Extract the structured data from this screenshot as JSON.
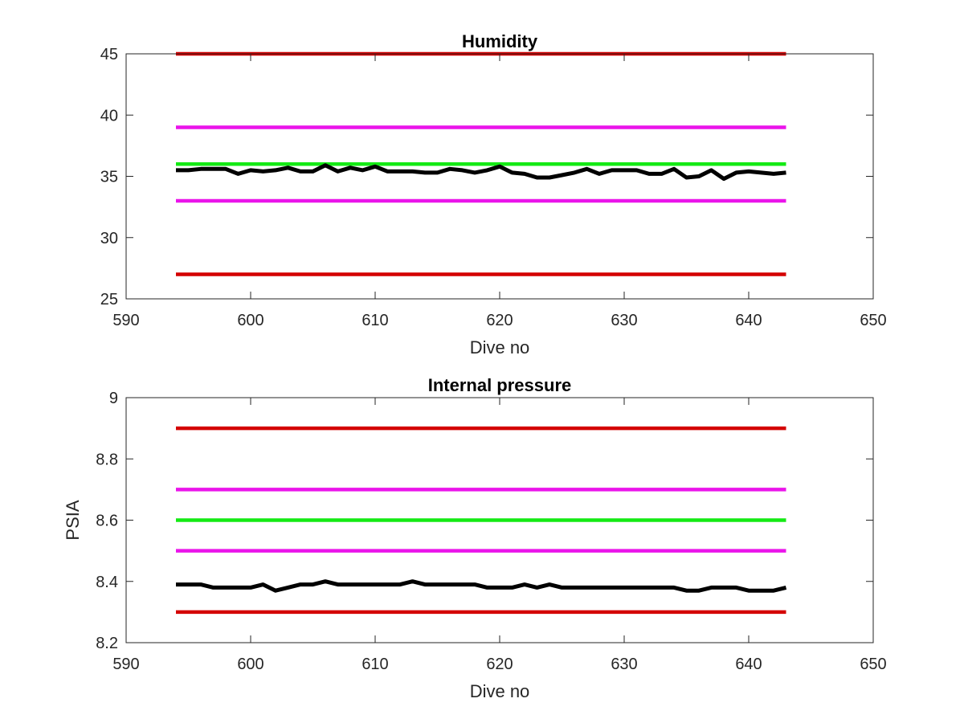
{
  "chart_data": [
    {
      "type": "line",
      "title": "Humidity",
      "xlabel": "Dive no",
      "ylabel": "",
      "xlim": [
        590,
        650
      ],
      "ylim": [
        25,
        45
      ],
      "xticks": [
        590,
        600,
        610,
        620,
        630,
        640,
        650
      ],
      "yticks": [
        25,
        30,
        35,
        40,
        45
      ],
      "grid": false,
      "series": [
        {
          "color": "#d40000",
          "x": [
            594,
            643
          ],
          "y": [
            45,
            45
          ]
        },
        {
          "color": "#ea14ea",
          "x": [
            594,
            643
          ],
          "y": [
            39,
            39
          ]
        },
        {
          "color": "#14ea14",
          "x": [
            594,
            643
          ],
          "y": [
            36,
            36
          ]
        },
        {
          "color": "#ea14ea",
          "x": [
            594,
            643
          ],
          "y": [
            33,
            33
          ]
        },
        {
          "color": "#d40000",
          "x": [
            594,
            643
          ],
          "y": [
            27,
            27
          ]
        },
        {
          "color": "#000000",
          "x": [
            594,
            595,
            596,
            597,
            598,
            599,
            600,
            601,
            602,
            603,
            604,
            605,
            606,
            607,
            608,
            609,
            610,
            611,
            612,
            613,
            614,
            615,
            616,
            617,
            618,
            619,
            620,
            621,
            622,
            623,
            624,
            625,
            626,
            627,
            628,
            629,
            630,
            631,
            632,
            633,
            634,
            635,
            636,
            637,
            638,
            639,
            640,
            641,
            642,
            643
          ],
          "y": [
            35.5,
            35.5,
            35.6,
            35.6,
            35.6,
            35.2,
            35.5,
            35.4,
            35.5,
            35.7,
            35.4,
            35.4,
            35.9,
            35.4,
            35.7,
            35.5,
            35.8,
            35.4,
            35.4,
            35.4,
            35.3,
            35.3,
            35.6,
            35.5,
            35.3,
            35.5,
            35.8,
            35.3,
            35.2,
            34.9,
            34.9,
            35.1,
            35.3,
            35.6,
            35.2,
            35.5,
            35.5,
            35.5,
            35.2,
            35.2,
            35.6,
            34.9,
            35.0,
            35.5,
            34.8,
            35.3,
            35.4,
            35.3,
            35.2,
            35.3
          ]
        }
      ]
    },
    {
      "type": "line",
      "title": "Internal pressure",
      "xlabel": "Dive no",
      "ylabel": "PSIA",
      "xlim": [
        590,
        650
      ],
      "ylim": [
        8.2,
        9.0
      ],
      "xticks": [
        590,
        600,
        610,
        620,
        630,
        640,
        650
      ],
      "yticks": [
        8.2,
        8.4,
        8.6,
        8.8,
        9.0
      ],
      "ytick_labels": [
        "8.2",
        "8.4",
        "8.6",
        "8.8",
        "9"
      ],
      "grid": false,
      "series": [
        {
          "color": "#d40000",
          "x": [
            594,
            643
          ],
          "y": [
            8.9,
            8.9
          ]
        },
        {
          "color": "#ea14ea",
          "x": [
            594,
            643
          ],
          "y": [
            8.7,
            8.7
          ]
        },
        {
          "color": "#14ea14",
          "x": [
            594,
            643
          ],
          "y": [
            8.6,
            8.6
          ]
        },
        {
          "color": "#ea14ea",
          "x": [
            594,
            643
          ],
          "y": [
            8.5,
            8.5
          ]
        },
        {
          "color": "#d40000",
          "x": [
            594,
            643
          ],
          "y": [
            8.3,
            8.3
          ]
        },
        {
          "color": "#000000",
          "x": [
            594,
            595,
            596,
            597,
            598,
            599,
            600,
            601,
            602,
            603,
            604,
            605,
            606,
            607,
            608,
            609,
            610,
            611,
            612,
            613,
            614,
            615,
            616,
            617,
            618,
            619,
            620,
            621,
            622,
            623,
            624,
            625,
            626,
            627,
            628,
            629,
            630,
            631,
            632,
            633,
            634,
            635,
            636,
            637,
            638,
            639,
            640,
            641,
            642,
            643
          ],
          "y": [
            8.39,
            8.39,
            8.39,
            8.38,
            8.38,
            8.38,
            8.38,
            8.39,
            8.37,
            8.38,
            8.39,
            8.39,
            8.4,
            8.39,
            8.39,
            8.39,
            8.39,
            8.39,
            8.39,
            8.4,
            8.39,
            8.39,
            8.39,
            8.39,
            8.39,
            8.38,
            8.38,
            8.38,
            8.39,
            8.38,
            8.39,
            8.38,
            8.38,
            8.38,
            8.38,
            8.38,
            8.38,
            8.38,
            8.38,
            8.38,
            8.38,
            8.37,
            8.37,
            8.38,
            8.38,
            8.38,
            8.37,
            8.37,
            8.37,
            8.38
          ]
        }
      ]
    }
  ]
}
